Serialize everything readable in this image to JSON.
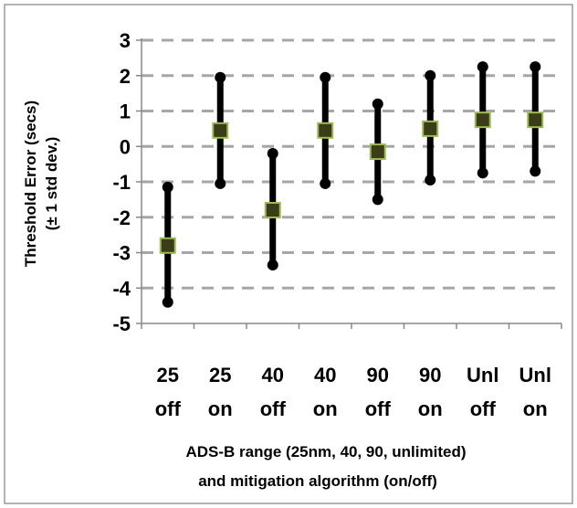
{
  "chart_data": {
    "type": "errorbar",
    "ylabel_line1": "Threshold Error (secs)",
    "ylabel_line2": "(± 1 std dev.)",
    "xlabel_line1": "ADS-B range (25nm, 40, 90, unlimited)",
    "xlabel_line2": "and mitigation algorithm (on/off)",
    "ylim": [
      -5,
      3
    ],
    "yticks": [
      "3",
      "2",
      "1",
      "0",
      "-1",
      "-2",
      "-3",
      "-4",
      "-5"
    ],
    "grid": true,
    "categories": [
      [
        "25",
        "off"
      ],
      [
        "25",
        "on"
      ],
      [
        "40",
        "off"
      ],
      [
        "40",
        "on"
      ],
      [
        "90",
        "off"
      ],
      [
        "90",
        "on"
      ],
      [
        "Unl",
        "off"
      ],
      [
        "Unl",
        "on"
      ]
    ],
    "means": [
      -2.8,
      0.45,
      -1.8,
      0.45,
      -0.15,
      0.5,
      0.75,
      0.75
    ],
    "upper": [
      -1.15,
      1.95,
      -0.2,
      1.95,
      1.2,
      2.0,
      2.25,
      2.25
    ],
    "lower": [
      -4.4,
      -1.05,
      -3.35,
      -1.05,
      -1.5,
      -0.95,
      -0.75,
      -0.7
    ],
    "colors": {
      "marker_fill": "#3a3d17",
      "marker_edge": "#9bbb59",
      "bar": "#000000",
      "grid": "#a6a6a6"
    }
  }
}
